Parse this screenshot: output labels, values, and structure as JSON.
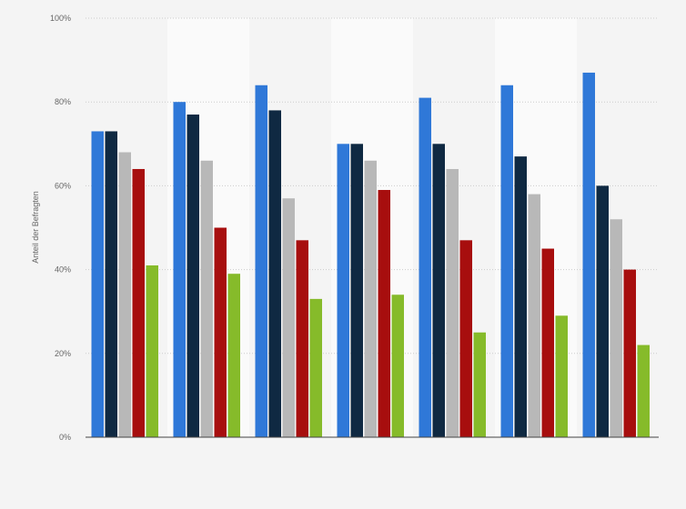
{
  "chart_data": {
    "type": "bar",
    "title": "",
    "xlabel": "",
    "ylabel": "Anteil der Befragten",
    "ylim": [
      0,
      100
    ],
    "yticks": [
      "0%",
      "20%",
      "40%",
      "60%",
      "80%",
      "100%"
    ],
    "grid": true,
    "legend": "none",
    "categories": [
      "",
      "",
      "",
      "",
      "",
      "",
      ""
    ],
    "series": [
      {
        "color": "#2f78d8",
        "values": [
          73,
          80,
          84,
          70,
          81,
          84,
          87
        ]
      },
      {
        "color": "#0f2942",
        "values": [
          73,
          77,
          78,
          70,
          70,
          67,
          60
        ]
      },
      {
        "color": "#b8b8b8",
        "values": [
          68,
          66,
          57,
          66,
          64,
          58,
          52
        ]
      },
      {
        "color": "#a70e0e",
        "values": [
          64,
          50,
          47,
          59,
          47,
          45,
          40
        ]
      },
      {
        "color": "#86bb2a",
        "values": [
          41,
          39,
          33,
          34,
          25,
          29,
          22
        ]
      }
    ]
  }
}
